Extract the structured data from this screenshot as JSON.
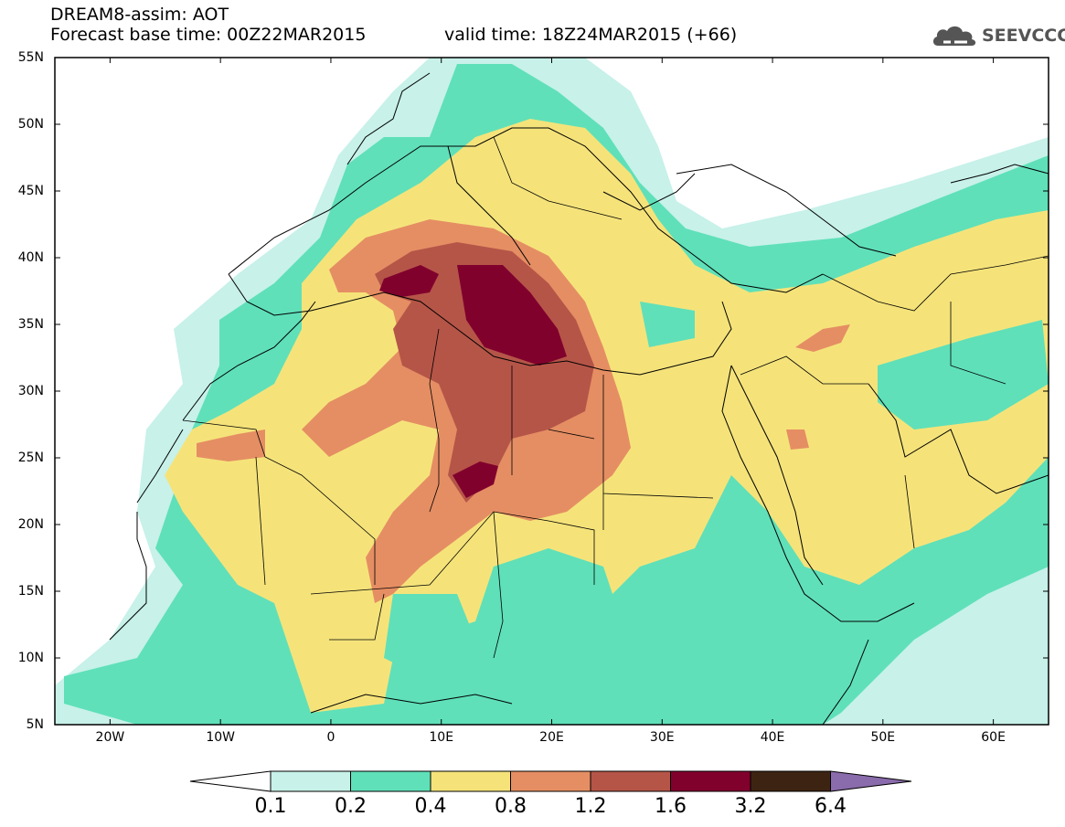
{
  "header": {
    "title_line1": "DREAM8-assim: AOT",
    "forecast_base": "Forecast base time: 00Z22MAR2015",
    "valid_time": "valid time: 18Z24MAR2015 (+66)"
  },
  "logo": {
    "text": "SEEVCCC",
    "icon": "cloud-icon"
  },
  "map": {
    "projection": "lat-lon",
    "lon_range": [
      -25,
      65
    ],
    "lat_range": [
      5,
      55
    ],
    "lat_ticks": [
      "55N",
      "50N",
      "45N",
      "40N",
      "35N",
      "30N",
      "25N",
      "20N",
      "15N",
      "10N",
      "5N"
    ],
    "lon_ticks": [
      "20W",
      "10W",
      "0",
      "10E",
      "20E",
      "30E",
      "40E",
      "50E",
      "60E"
    ],
    "variable": "AOT",
    "field_description": "Saharan dust plume over North Africa and the central Mediterranean"
  },
  "colorbar": {
    "labels": [
      "0.1",
      "0.2",
      "0.4",
      "0.8",
      "1.2",
      "1.6",
      "3.2",
      "6.4"
    ],
    "colors": [
      "#c7f1e9",
      "#5fe0b9",
      "#f5e37a",
      "#e58e63",
      "#b55548",
      "#81012d",
      "#3d2412",
      "#8a6bab"
    ],
    "under_color": "#ffffff"
  }
}
